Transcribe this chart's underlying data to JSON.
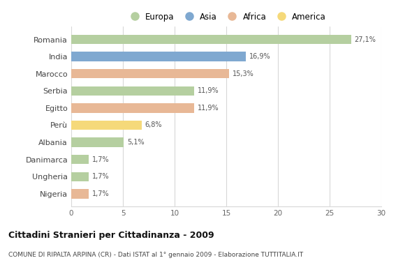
{
  "categories": [
    "Romania",
    "India",
    "Marocco",
    "Serbia",
    "Egitto",
    "Perù",
    "Albania",
    "Danimarca",
    "Ungheria",
    "Nigeria"
  ],
  "values": [
    27.1,
    16.9,
    15.3,
    11.9,
    11.9,
    6.8,
    5.1,
    1.7,
    1.7,
    1.7
  ],
  "labels": [
    "27,1%",
    "16,9%",
    "15,3%",
    "11,9%",
    "11,9%",
    "6,8%",
    "5,1%",
    "1,7%",
    "1,7%",
    "1,7%"
  ],
  "colors": [
    "#b5cfa0",
    "#7fa8d0",
    "#e8b896",
    "#b5cfa0",
    "#e8b896",
    "#f5d97a",
    "#b5cfa0",
    "#b5cfa0",
    "#b5cfa0",
    "#e8b896"
  ],
  "legend": [
    {
      "label": "Europa",
      "color": "#b5cfa0"
    },
    {
      "label": "Asia",
      "color": "#7fa8d0"
    },
    {
      "label": "Africa",
      "color": "#e8b896"
    },
    {
      "label": "America",
      "color": "#f5d97a"
    }
  ],
  "xlim": [
    0,
    30
  ],
  "xticks": [
    0,
    5,
    10,
    15,
    20,
    25,
    30
  ],
  "title": "Cittadini Stranieri per Cittadinanza - 2009",
  "subtitle": "COMUNE DI RIPALTA ARPINA (CR) - Dati ISTAT al 1° gennaio 2009 - Elaborazione TUTTITALIA.IT",
  "bg_color": "#ffffff",
  "grid_color": "#d8d8d8",
  "bar_height": 0.55
}
